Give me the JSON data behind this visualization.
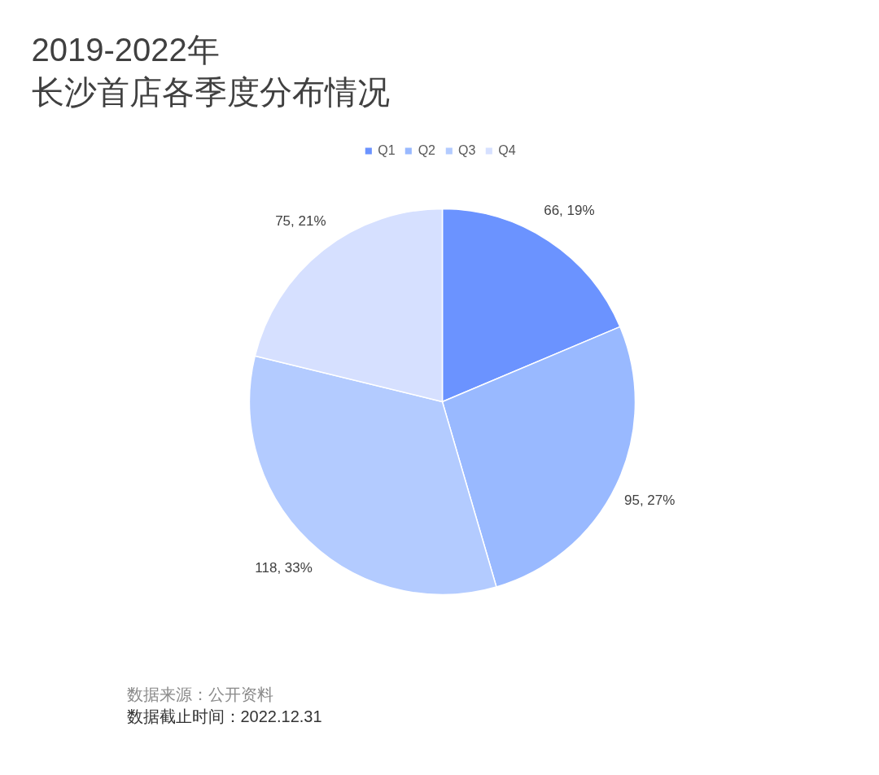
{
  "chart_data": {
    "type": "pie",
    "title": "2019-2022年",
    "subtitle": "长沙首店各季度分布情况",
    "categories": [
      "Q1",
      "Q2",
      "Q3",
      "Q4"
    ],
    "values": [
      66,
      95,
      118,
      75
    ],
    "colors": [
      "#6b93ff",
      "#99b9ff",
      "#b3cbff",
      "#d6e0ff"
    ],
    "value_labels": [
      "66, 19%",
      "95, 27%",
      "118, 33%",
      "75, 21%"
    ],
    "legend": "top",
    "annotations": [
      "数据来源：公开资料",
      "数据截止时间：2022.12.31"
    ]
  }
}
